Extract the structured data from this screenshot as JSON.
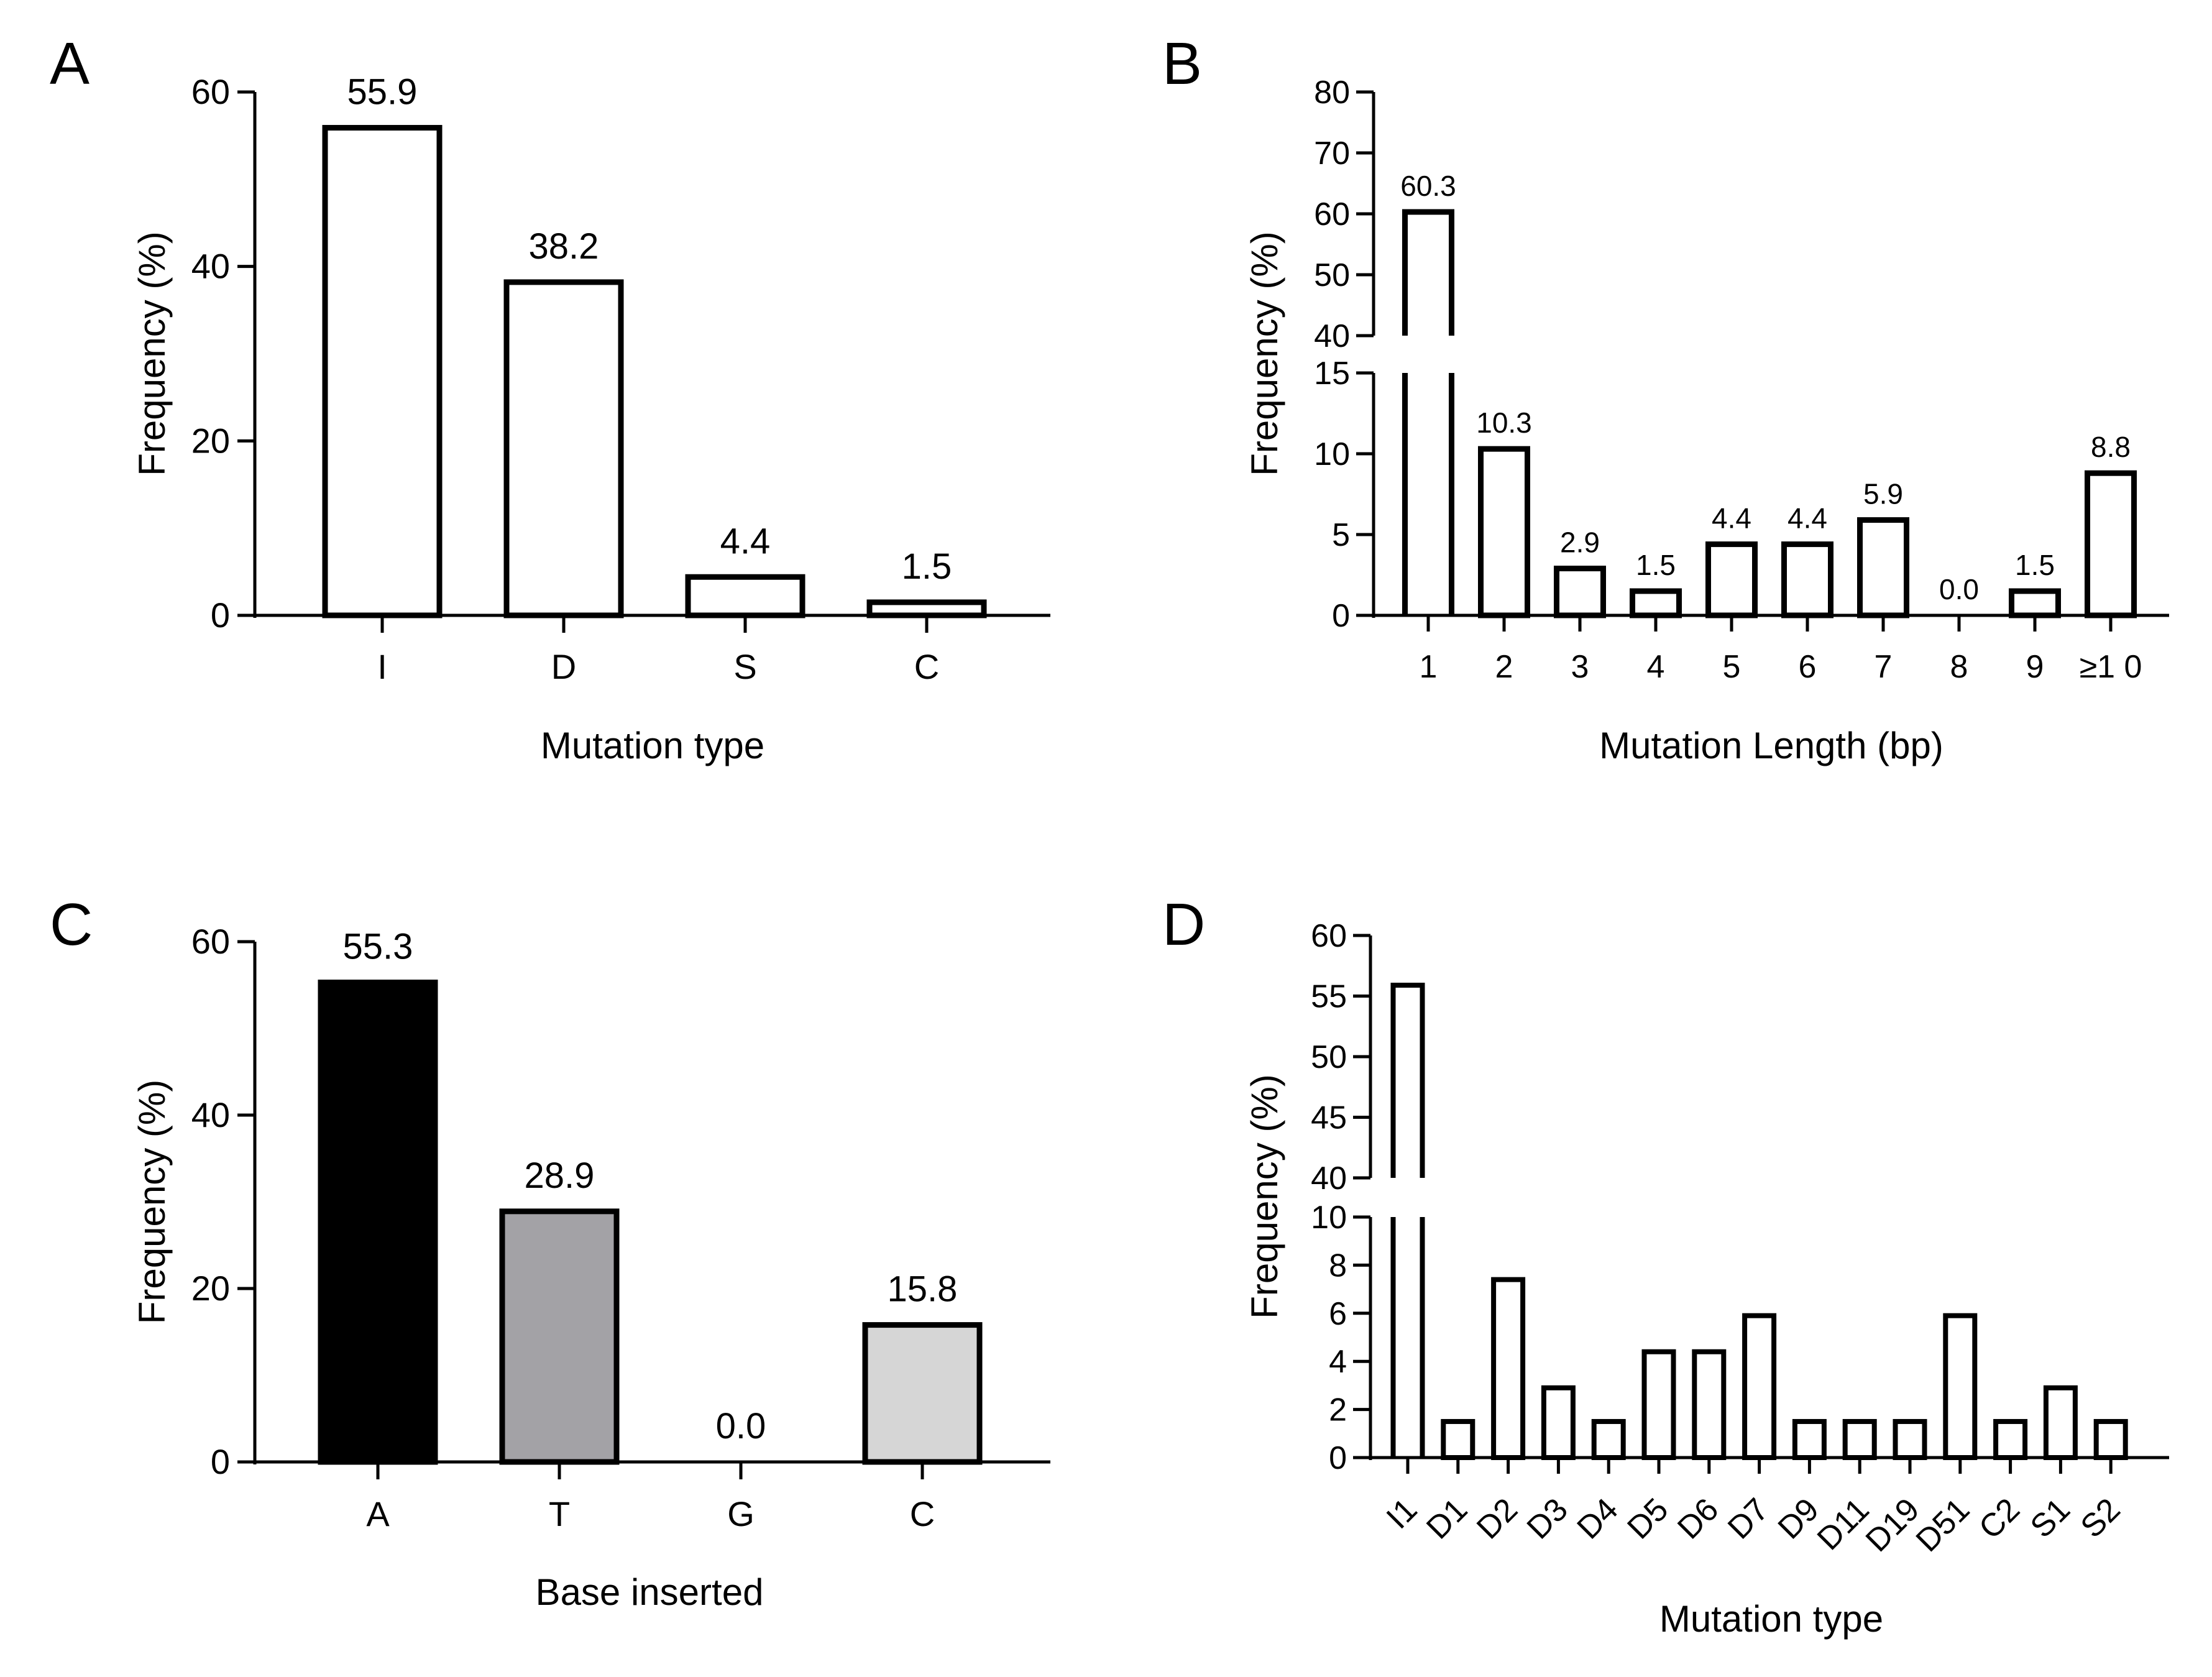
{
  "figure": {
    "panels": [
      {
        "id": "A",
        "letter": "A"
      },
      {
        "id": "B",
        "letter": "B"
      },
      {
        "id": "C",
        "letter": "C"
      },
      {
        "id": "D",
        "letter": "D"
      }
    ]
  },
  "chart_data": [
    {
      "id": "A",
      "type": "bar",
      "title": "",
      "xlabel": "Mutation type",
      "ylabel": "Frequency (%)",
      "categories": [
        "I",
        "D",
        "S",
        "C"
      ],
      "values": [
        55.9,
        38.2,
        4.4,
        1.5
      ],
      "value_labels": [
        "55.9",
        "38.2",
        "4.4",
        "1.5"
      ],
      "ylim": [
        0,
        60
      ],
      "yticks": [
        0,
        20,
        40,
        60
      ],
      "bar_colors": [
        "#ffffff",
        "#ffffff",
        "#ffffff",
        "#ffffff"
      ],
      "grid": false
    },
    {
      "id": "B",
      "type": "bar",
      "title": "",
      "xlabel": "Mutation Length (bp)",
      "ylabel": "Frequency (%)",
      "categories": [
        "1",
        "2",
        "3",
        "4",
        "5",
        "6",
        "7",
        "8",
        "9",
        "≥1 0"
      ],
      "values": [
        60.3,
        10.3,
        2.9,
        1.5,
        4.4,
        4.4,
        5.9,
        0.0,
        1.5,
        8.8
      ],
      "value_labels": [
        "60.3",
        "10.3",
        "2.9",
        "1.5",
        "4.4",
        "4.4",
        "5.9",
        "0.0",
        "1.5",
        "8.8"
      ],
      "ylim": [
        0,
        80
      ],
      "axis_break": [
        15,
        40
      ],
      "yticks_lower": [
        0,
        5,
        10,
        15
      ],
      "yticks_upper": [
        40,
        50,
        60,
        70,
        80
      ],
      "bar_colors": [
        "#ffffff"
      ],
      "grid": false
    },
    {
      "id": "C",
      "type": "bar",
      "title": "",
      "xlabel": "Base inserted",
      "ylabel": "Frequency (%)",
      "categories": [
        "A",
        "T",
        "G",
        "C"
      ],
      "values": [
        55.3,
        28.9,
        0.0,
        15.8
      ],
      "value_labels": [
        "55.3",
        "28.9",
        "0.0",
        "15.8"
      ],
      "ylim": [
        0,
        60
      ],
      "yticks": [
        0,
        20,
        40,
        60
      ],
      "bar_colors": [
        "#000000",
        "#a3a2a6",
        "#ffffff",
        "#d6d6d6"
      ],
      "grid": false
    },
    {
      "id": "D",
      "type": "bar",
      "title": "",
      "xlabel": "Mutation type",
      "ylabel": "Frequency (%)",
      "categories": [
        "I1",
        "D1",
        "D2",
        "D3",
        "D4",
        "D5",
        "D6",
        "D7",
        "D9",
        "D11",
        "D19",
        "D51",
        "C2",
        "S1",
        "S2"
      ],
      "values": [
        55.9,
        1.5,
        7.4,
        2.9,
        1.5,
        4.4,
        4.4,
        5.9,
        1.5,
        1.5,
        1.5,
        5.9,
        1.5,
        2.9,
        1.5
      ],
      "ylim": [
        0,
        60
      ],
      "axis_break": [
        10,
        40
      ],
      "yticks_lower": [
        0,
        2,
        4,
        6,
        8,
        10
      ],
      "yticks_upper": [
        40,
        45,
        50,
        55,
        60
      ],
      "bar_colors": [
        "#ffffff"
      ],
      "grid": false
    }
  ]
}
